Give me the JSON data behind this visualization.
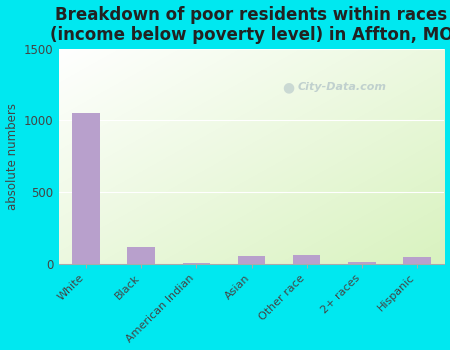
{
  "title": "Breakdown of poor residents within races\n(income below poverty level) in Affton, MO",
  "categories": [
    "White",
    "Black",
    "American Indian",
    "Asian",
    "Other race",
    "2+ races",
    "Hispanic"
  ],
  "values": [
    1050,
    115,
    5,
    55,
    60,
    15,
    50
  ],
  "bar_color": "#b8a0cc",
  "ylabel": "absolute numbers",
  "ylim": [
    0,
    1500
  ],
  "yticks": [
    0,
    500,
    1000,
    1500
  ],
  "outer_bg": "#00e8f0",
  "title_fontsize": 12,
  "watermark": "City-Data.com"
}
